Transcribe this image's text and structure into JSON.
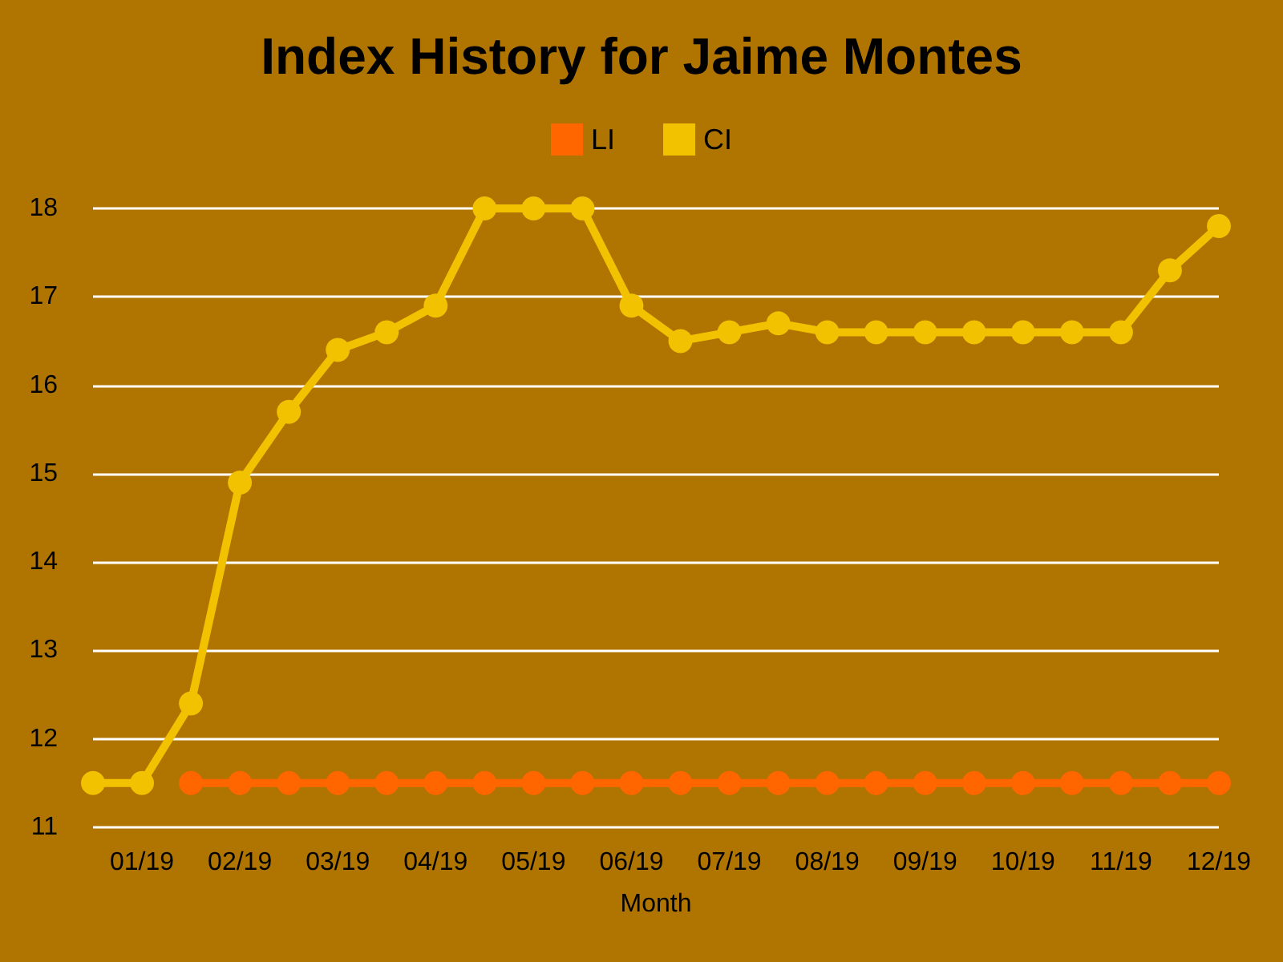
{
  "chart_data": {
    "type": "line",
    "title": "Index History for Jaime Montes",
    "xlabel": "Month",
    "categories": [
      null,
      "01/19",
      null,
      "02/19",
      null,
      "03/19",
      null,
      "04/19",
      null,
      "05/19",
      null,
      "06/19",
      null,
      "07/19",
      null,
      "08/19",
      null,
      "09/19",
      null,
      "10/19",
      null,
      "11/19",
      null,
      "12/19"
    ],
    "series": [
      {
        "name": "LI",
        "color": "#ff6600",
        "values": [
          null,
          null,
          11.5,
          11.5,
          11.5,
          11.5,
          11.5,
          11.5,
          11.5,
          11.5,
          11.5,
          11.5,
          11.5,
          11.5,
          11.5,
          11.5,
          11.5,
          11.5,
          11.5,
          11.5,
          11.5,
          11.5,
          11.5,
          11.5
        ]
      },
      {
        "name": "CI",
        "color": "#f2c200",
        "values": [
          11.5,
          11.5,
          12.4,
          14.9,
          15.7,
          16.4,
          16.6,
          16.9,
          18,
          18,
          18,
          16.9,
          16.5,
          16.6,
          16.7,
          16.6,
          16.6,
          16.6,
          16.6,
          16.6,
          16.6,
          16.6,
          17.3,
          17.8
        ]
      }
    ],
    "ylim": [
      11,
      18
    ],
    "yticks": [
      11,
      12,
      13,
      14,
      15,
      16,
      17,
      18
    ],
    "grid": "y",
    "legend": "top",
    "marker": "circle",
    "line_style": "solid"
  }
}
